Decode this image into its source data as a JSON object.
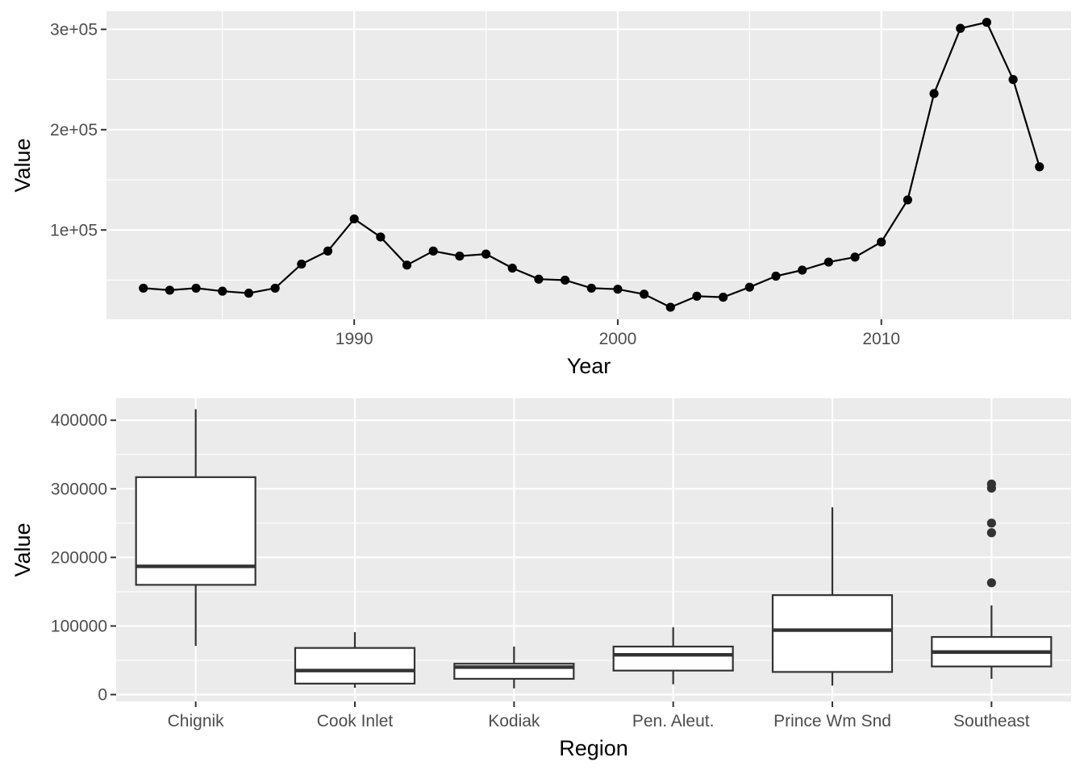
{
  "chart_data": [
    {
      "type": "line",
      "xlabel": "Year",
      "ylabel": "Value",
      "xlim": [
        1980.6,
        2017.2
      ],
      "ylim": [
        11000,
        318000
      ],
      "x_ticks": [
        1990,
        2000,
        2010
      ],
      "x_tick_labels": [
        "1990",
        "2000",
        "2010"
      ],
      "y_ticks": [
        100000,
        200000,
        300000
      ],
      "y_tick_labels": [
        "1e+05",
        "2e+05",
        "3e+05"
      ],
      "grid": true,
      "x": [
        1982,
        1983,
        1984,
        1985,
        1986,
        1987,
        1988,
        1989,
        1990,
        1991,
        1992,
        1993,
        1994,
        1995,
        1996,
        1997,
        1998,
        1999,
        2000,
        2001,
        2002,
        2003,
        2004,
        2005,
        2006,
        2007,
        2008,
        2009,
        2010,
        2011,
        2012,
        2013,
        2014,
        2015,
        2016
      ],
      "values": [
        42000,
        40000,
        42000,
        39000,
        37000,
        42000,
        66000,
        79000,
        111000,
        93000,
        65000,
        79000,
        74000,
        76000,
        62000,
        51000,
        50000,
        42000,
        41000,
        36000,
        23000,
        34000,
        33000,
        43000,
        54000,
        60000,
        68000,
        73000,
        88000,
        130000,
        236000,
        301000,
        307000,
        250000,
        163000
      ]
    },
    {
      "type": "box",
      "xlabel": "Region",
      "ylabel": "Value",
      "ylim": [
        -10000,
        432000
      ],
      "y_ticks": [
        0,
        100000,
        200000,
        300000,
        400000
      ],
      "y_tick_labels": [
        "0",
        "100000",
        "200000",
        "300000",
        "400000"
      ],
      "grid": true,
      "categories": [
        "Chignik",
        "Cook Inlet",
        "Kodiak",
        "Pen. Aleut.",
        "Prince Wm Snd",
        "Southeast"
      ],
      "boxes": [
        {
          "min": 71000,
          "q1": 160000,
          "median": 187000,
          "q3": 317000,
          "max": 416000,
          "outliers": []
        },
        {
          "min": 10000,
          "q1": 16000,
          "median": 35000,
          "q3": 68000,
          "max": 91000,
          "outliers": []
        },
        {
          "min": 9000,
          "q1": 23000,
          "median": 40000,
          "q3": 45000,
          "max": 70000,
          "outliers": []
        },
        {
          "min": 15000,
          "q1": 35000,
          "median": 58000,
          "q3": 70000,
          "max": 98000,
          "outliers": []
        },
        {
          "min": 13000,
          "q1": 33000,
          "median": 94000,
          "q3": 145000,
          "max": 273000,
          "outliers": []
        },
        {
          "min": 23000,
          "q1": 41000,
          "median": 62000,
          "q3": 84000,
          "max": 130000,
          "outliers": [
            163000,
            236000,
            250000,
            301000,
            307000
          ]
        }
      ]
    }
  ]
}
